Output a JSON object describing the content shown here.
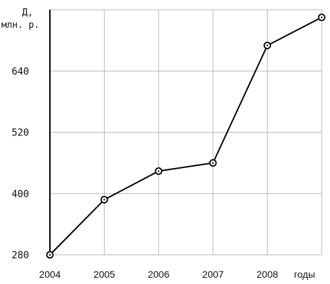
{
  "chart_data": {
    "type": "line",
    "title": "",
    "ylabel": [
      "Д,",
      "млн. р."
    ],
    "xlabel": "годы",
    "x": [
      "2004",
      "2005",
      "2006",
      "2007",
      "2008",
      ""
    ],
    "x_tick_labels": [
      "2004",
      "2005",
      "2006",
      "2007",
      "2008"
    ],
    "series": [
      {
        "values": [
          280,
          388,
          444,
          460,
          690,
          745
        ]
      }
    ],
    "y_ticks": [
      280,
      400,
      520,
      640
    ],
    "ylim": [
      280,
      760
    ],
    "grid": true,
    "markers": "open-circle-with-dot",
    "colors": {
      "line": "#000000",
      "grid": "#b8b8b8"
    }
  }
}
